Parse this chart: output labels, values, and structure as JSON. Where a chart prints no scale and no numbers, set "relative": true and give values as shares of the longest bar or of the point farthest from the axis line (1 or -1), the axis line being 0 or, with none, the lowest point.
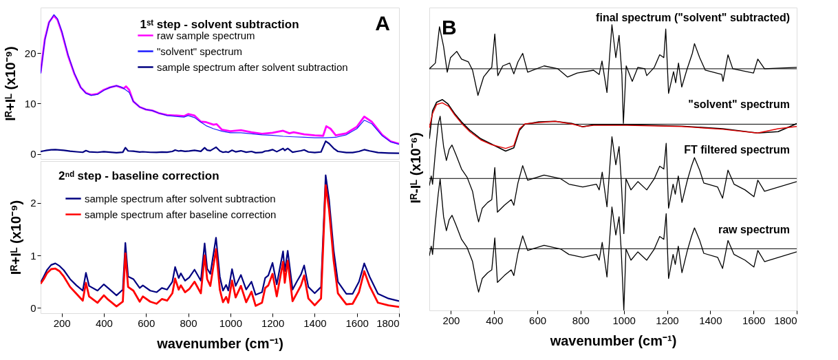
{
  "chart_data": [
    {
      "type": "line",
      "title": "1ˢᵗ step - solvent subtraction",
      "ylabel": "Iᴿ+Iᴸ (x10⁻⁹)",
      "xlim": [
        100,
        1800
      ],
      "xticks": [
        200,
        400,
        600,
        800,
        1000,
        1200,
        1400,
        1600,
        1800
      ],
      "ylim": [
        -1,
        29
      ],
      "yticks": [
        0,
        10,
        20
      ],
      "tick_labels": "y",
      "legend": "top",
      "annotations": [
        "A"
      ],
      "series": [
        {
          "name": "raw sample spectrum",
          "color": "#ff00ff",
          "x": [
            100,
            120,
            140,
            163,
            180,
            200,
            230,
            260,
            290,
            315,
            340,
            370,
            400,
            430,
            460,
            480,
            495,
            505,
            520,
            540,
            570,
            600,
            630,
            660,
            700,
            750,
            780,
            800,
            830,
            860,
            885,
            920,
            935,
            960,
            1000,
            1050,
            1100,
            1150,
            1200,
            1250,
            1280,
            1300,
            1350,
            1400,
            1440,
            1455,
            1475,
            1500,
            1550,
            1600,
            1635,
            1670,
            1720,
            1760,
            1800
          ],
          "values": [
            16.1,
            22.7,
            26.1,
            27.4,
            26.6,
            24.2,
            19.5,
            15.9,
            13.2,
            12.1,
            11.7,
            11.9,
            12.7,
            13.2,
            13.5,
            13.2,
            13.0,
            13.4,
            12.7,
            10.4,
            9.3,
            8.8,
            8.6,
            8.1,
            7.7,
            7.6,
            7.5,
            7.9,
            7.6,
            6.4,
            6.3,
            5.8,
            5.9,
            4.8,
            4.5,
            4.7,
            4.3,
            4.0,
            4.2,
            4.6,
            4.1,
            4.3,
            3.9,
            3.7,
            3.6,
            5.5,
            5.0,
            3.7,
            4.1,
            5.4,
            7.4,
            6.4,
            3.8,
            2.5,
            2.0
          ]
        },
        {
          "name": "\"solvent\" spectrum",
          "color": "#1a1aff",
          "x": [
            100,
            120,
            140,
            163,
            180,
            200,
            230,
            260,
            290,
            315,
            340,
            370,
            400,
            430,
            460,
            480,
            500,
            520,
            540,
            570,
            600,
            630,
            660,
            700,
            750,
            780,
            800,
            830,
            860,
            885,
            920,
            960,
            1000,
            1050,
            1100,
            1150,
            1200,
            1250,
            1300,
            1350,
            1400,
            1450,
            1500,
            1550,
            1600,
            1635,
            1670,
            1720,
            1760,
            1800
          ],
          "values": [
            15.9,
            22.5,
            26.0,
            27.6,
            26.8,
            24.4,
            19.7,
            16.0,
            13.2,
            12.0,
            11.6,
            11.8,
            12.6,
            13.2,
            13.5,
            13.3,
            12.8,
            12.2,
            10.4,
            9.3,
            8.8,
            8.6,
            8.1,
            7.6,
            7.4,
            7.3,
            7.6,
            7.2,
            6.3,
            5.6,
            5.0,
            4.5,
            4.2,
            4.2,
            4.0,
            3.8,
            3.7,
            3.5,
            3.4,
            3.3,
            3.2,
            3.2,
            3.3,
            3.8,
            5.0,
            6.7,
            6.0,
            3.6,
            2.4,
            1.9
          ]
        },
        {
          "name": "sample spectrum after solvent subtraction",
          "color": "#000080",
          "x": [
            100,
            115,
            130,
            150,
            170,
            190,
            210,
            240,
            270,
            300,
            315,
            330,
            370,
            400,
            420,
            460,
            490,
            502,
            515,
            540,
            570,
            585,
            620,
            650,
            675,
            700,
            725,
            738,
            755,
            765,
            785,
            805,
            830,
            860,
            878,
            890,
            905,
            932,
            950,
            965,
            980,
            990,
            1008,
            1025,
            1050,
            1075,
            1100,
            1120,
            1150,
            1165,
            1180,
            1200,
            1220,
            1250,
            1258,
            1272,
            1295,
            1315,
            1335,
            1350,
            1370,
            1400,
            1430,
            1452,
            1468,
            1490,
            1510,
            1550,
            1580,
            1610,
            1635,
            1660,
            1700,
            1750,
            1800
          ],
          "values": [
            0.48,
            0.6,
            0.72,
            0.82,
            0.85,
            0.8,
            0.72,
            0.55,
            0.43,
            0.33,
            0.67,
            0.42,
            0.33,
            0.45,
            0.38,
            0.24,
            0.35,
            1.24,
            0.6,
            0.55,
            0.38,
            0.43,
            0.33,
            0.3,
            0.38,
            0.35,
            0.5,
            0.78,
            0.57,
            0.66,
            0.52,
            0.58,
            0.73,
            0.52,
            1.23,
            0.75,
            0.65,
            1.34,
            0.6,
            0.33,
            0.44,
            0.33,
            0.74,
            0.42,
            0.63,
            0.35,
            0.5,
            0.25,
            0.3,
            0.57,
            0.62,
            0.86,
            0.45,
            1.08,
            0.7,
            1.09,
            0.35,
            0.5,
            0.64,
            0.81,
            0.4,
            0.28,
            0.4,
            2.53,
            2.07,
            1.1,
            0.5,
            0.27,
            0.27,
            0.5,
            0.85,
            0.6,
            0.27,
            0.18,
            0.13
          ]
        }
      ]
    },
    {
      "type": "line",
      "title": "2ⁿᵈ step - baseline correction",
      "xlabel": "wavenumber (cm⁻¹)",
      "ylabel": "Iᴿ+Iᴸ (x10⁻⁹)",
      "xlim": [
        100,
        1800
      ],
      "xticks": [
        200,
        400,
        600,
        800,
        1000,
        1200,
        1400,
        1600,
        1800
      ],
      "ylim": [
        -0.1,
        2.8
      ],
      "yticks": [
        0,
        1,
        2
      ],
      "legend": "top left",
      "x": [
        100,
        115,
        130,
        150,
        170,
        190,
        210,
        240,
        270,
        300,
        315,
        330,
        370,
        400,
        420,
        460,
        490,
        502,
        515,
        540,
        570,
        585,
        620,
        650,
        675,
        700,
        725,
        738,
        755,
        765,
        785,
        805,
        830,
        860,
        878,
        890,
        905,
        932,
        950,
        965,
        980,
        990,
        1008,
        1025,
        1050,
        1075,
        1100,
        1120,
        1150,
        1165,
        1180,
        1200,
        1220,
        1250,
        1258,
        1272,
        1295,
        1315,
        1335,
        1350,
        1370,
        1400,
        1430,
        1452,
        1468,
        1490,
        1510,
        1550,
        1580,
        1610,
        1635,
        1660,
        1700,
        1750,
        1800
      ],
      "series": [
        {
          "name": "sample spectrum after solvent subtraction",
          "color": "#000080",
          "values": [
            0.48,
            0.6,
            0.72,
            0.82,
            0.85,
            0.8,
            0.72,
            0.55,
            0.43,
            0.33,
            0.67,
            0.42,
            0.33,
            0.45,
            0.38,
            0.24,
            0.35,
            1.24,
            0.6,
            0.55,
            0.38,
            0.43,
            0.33,
            0.3,
            0.38,
            0.35,
            0.5,
            0.78,
            0.57,
            0.66,
            0.52,
            0.58,
            0.73,
            0.52,
            1.23,
            0.75,
            0.65,
            1.34,
            0.6,
            0.33,
            0.44,
            0.33,
            0.74,
            0.42,
            0.63,
            0.35,
            0.5,
            0.25,
            0.3,
            0.57,
            0.62,
            0.86,
            0.45,
            1.08,
            0.7,
            1.09,
            0.35,
            0.5,
            0.64,
            0.81,
            0.4,
            0.28,
            0.4,
            2.53,
            2.07,
            1.1,
            0.5,
            0.27,
            0.27,
            0.5,
            0.85,
            0.6,
            0.27,
            0.18,
            0.13
          ]
        },
        {
          "name": "sample spectrum after baseline correction",
          "color": "#ff0000",
          "values": [
            0.46,
            0.55,
            0.66,
            0.74,
            0.75,
            0.7,
            0.6,
            0.4,
            0.27,
            0.14,
            0.48,
            0.22,
            0.1,
            0.24,
            0.16,
            0.03,
            0.12,
            1.04,
            0.4,
            0.33,
            0.12,
            0.22,
            0.12,
            0.08,
            0.17,
            0.14,
            0.28,
            0.56,
            0.35,
            0.43,
            0.3,
            0.36,
            0.5,
            0.28,
            1.0,
            0.55,
            0.42,
            1.12,
            0.35,
            0.11,
            0.21,
            0.1,
            0.52,
            0.2,
            0.42,
            0.11,
            0.31,
            0.04,
            0.1,
            0.38,
            0.43,
            0.65,
            0.22,
            0.88,
            0.48,
            0.9,
            0.13,
            0.28,
            0.43,
            0.62,
            0.18,
            0.05,
            0.18,
            2.34,
            1.88,
            0.9,
            0.28,
            0.07,
            0.08,
            0.3,
            0.7,
            0.42,
            0.1,
            0.05,
            0.02
          ]
        }
      ]
    },
    {
      "type": "line",
      "relative": true,
      "xlabel": "wavenumber (cm⁻¹)",
      "ylabel": "Iᴿ-Iᴸ (x10⁻⁶)",
      "xlim": [
        100,
        1800
      ],
      "xticks": [
        200,
        400,
        600,
        800,
        1000,
        1200,
        1400,
        1600,
        1800
      ],
      "annotations": [
        "B"
      ],
      "ref_lines": [
        {
          "axis": "y",
          "value": 0.846
        },
        {
          "axis": "y",
          "value": 0.652
        },
        {
          "axis": "y",
          "value": 0.462
        },
        {
          "axis": "y",
          "value": 0.216
        }
      ],
      "series": [
        {
          "name": "final spectrum (\"solvent\" subtracted)",
          "color": "#000000",
          "x": [
            100,
            128,
            147,
            166,
            183,
            198,
            227,
            249,
            281,
            300,
            325,
            351,
            376,
            389,
            403,
            417,
            440,
            472,
            491,
            510,
            532,
            555,
            631,
            695,
            740,
            784,
            860,
            886,
            899,
            922,
            945,
            963,
            978,
            991,
            998,
            1011,
            1039,
            1065,
            1097,
            1106,
            1141,
            1166,
            1185,
            1194,
            1207,
            1230,
            1240,
            1253,
            1268,
            1291,
            1317,
            1327,
            1351,
            1377,
            1453,
            1459,
            1482,
            1504,
            1600,
            1620,
            1651,
            1800
          ],
          "values": [
            0.846,
            0.866,
            0.993,
            0.924,
            0.834,
            0.885,
            0.907,
            0.88,
            0.87,
            0.841,
            0.753,
            0.817,
            0.841,
            0.851,
            0.968,
            0.822,
            0.856,
            0.866,
            0.828,
            0.87,
            0.9,
            0.834,
            0.856,
            0.846,
            0.817,
            0.831,
            0.841,
            0.826,
            0.873,
            0.763,
            1.0,
            0.885,
            0.963,
            0.826,
            0.655,
            0.856,
            0.802,
            0.851,
            0.846,
            0.822,
            0.851,
            0.895,
            0.885,
            0.985,
            0.76,
            0.836,
            0.797,
            0.866,
            0.782,
            0.841,
            0.9,
            0.934,
            0.885,
            0.841,
            0.826,
            0.802,
            0.895,
            0.846,
            0.831,
            0.88,
            0.846,
            0.851
          ]
        },
        {
          "name": "\"solvent\" spectrum",
          "color": "#000000",
          "x": [
            100,
            115,
            134,
            160,
            185,
            217,
            249,
            287,
            338,
            389,
            453,
            491,
            517,
            542,
            606,
            682,
            759,
            810,
            860,
            1014,
            1268,
            1459,
            1619,
            1714,
            1800
          ],
          "values": [
            0.601,
            0.699,
            0.729,
            0.738,
            0.724,
            0.689,
            0.66,
            0.631,
            0.601,
            0.582,
            0.558,
            0.569,
            0.631,
            0.652,
            0.66,
            0.662,
            0.655,
            0.643,
            0.65,
            0.65,
            0.645,
            0.636,
            0.621,
            0.626,
            0.654
          ]
        },
        {
          "name": "FT filtered spectrum",
          "color": "#000000",
          "x": [
            100,
            109,
            115,
            128,
            141,
            150,
            166,
            179,
            192,
            205,
            224,
            249,
            275,
            300,
            319,
            328,
            345,
            370,
            389,
            403,
            415,
            447,
            479,
            491,
            510,
            532,
            555,
            631,
            708,
            746,
            810,
            873,
            886,
            900,
            922,
            945,
            963,
            978,
            988,
            1000,
            1010,
            1033,
            1065,
            1106,
            1141,
            1166,
            1185,
            1196,
            1207,
            1228,
            1238,
            1252,
            1269,
            1294,
            1313,
            1327,
            1351,
            1370,
            1434,
            1457,
            1482,
            1510,
            1561,
            1602,
            1620,
            1651,
            1800
          ],
          "values": [
            0.437,
            0.471,
            0.442,
            0.554,
            0.652,
            0.68,
            0.574,
            0.525,
            0.564,
            0.579,
            0.544,
            0.495,
            0.466,
            0.417,
            0.339,
            0.31,
            0.358,
            0.378,
            0.388,
            0.5,
            0.344,
            0.368,
            0.388,
            0.368,
            0.446,
            0.507,
            0.456,
            0.474,
            0.461,
            0.442,
            0.432,
            0.442,
            0.422,
            0.484,
            0.363,
            0.608,
            0.51,
            0.574,
            0.456,
            0.269,
            0.461,
            0.422,
            0.451,
            0.422,
            0.461,
            0.505,
            0.495,
            0.585,
            0.358,
            0.442,
            0.407,
            0.471,
            0.378,
            0.456,
            0.505,
            0.535,
            0.491,
            0.446,
            0.432,
            0.393,
            0.491,
            0.442,
            0.422,
            0.398,
            0.456,
            0.417,
            0.451
          ]
        },
        {
          "name": "raw spectrum",
          "color": "#000000",
          "x": [
            100,
            109,
            115,
            128,
            141,
            150,
            166,
            179,
            192,
            205,
            224,
            249,
            275,
            300,
            319,
            328,
            345,
            370,
            389,
            403,
            415,
            447,
            479,
            491,
            510,
            532,
            555,
            631,
            708,
            746,
            810,
            873,
            886,
            900,
            922,
            945,
            963,
            978,
            988,
            1000,
            1010,
            1033,
            1065,
            1106,
            1141,
            1166,
            1185,
            1196,
            1207,
            1228,
            1238,
            1252,
            1269,
            1294,
            1313,
            1327,
            1351,
            1370,
            1434,
            1457,
            1482,
            1510,
            1561,
            1602,
            1620,
            1651,
            1800
          ],
          "values": [
            0.191,
            0.225,
            0.196,
            0.308,
            0.406,
            0.46,
            0.328,
            0.279,
            0.318,
            0.333,
            0.298,
            0.249,
            0.22,
            0.171,
            0.093,
            0.064,
            0.112,
            0.132,
            0.142,
            0.254,
            0.098,
            0.122,
            0.142,
            0.122,
            0.2,
            0.261,
            0.21,
            0.228,
            0.215,
            0.196,
            0.186,
            0.196,
            0.176,
            0.238,
            0.117,
            0.362,
            0.264,
            0.328,
            0.21,
            0.0,
            0.215,
            0.176,
            0.205,
            0.176,
            0.215,
            0.259,
            0.249,
            0.339,
            0.112,
            0.196,
            0.161,
            0.225,
            0.132,
            0.21,
            0.259,
            0.289,
            0.245,
            0.2,
            0.186,
            0.147,
            0.245,
            0.196,
            0.176,
            0.152,
            0.21,
            0.171,
            0.205
          ]
        },
        {
          "color": "#e00000",
          "x": [
            100,
            115,
            134,
            160,
            190,
            217,
            249,
            287,
            338,
            389,
            453,
            491,
            517,
            542,
            606,
            682,
            759,
            810,
            860,
            1014,
            1268,
            1459,
            1619,
            1714,
            1800
          ],
          "values": [
            0.639,
            0.689,
            0.721,
            0.727,
            0.714,
            0.685,
            0.655,
            0.626,
            0.597,
            0.58,
            0.567,
            0.577,
            0.636,
            0.653,
            0.658,
            0.662,
            0.653,
            0.643,
            0.648,
            0.648,
            0.644,
            0.634,
            0.621,
            0.636,
            0.644
          ]
        }
      ]
    }
  ]
}
